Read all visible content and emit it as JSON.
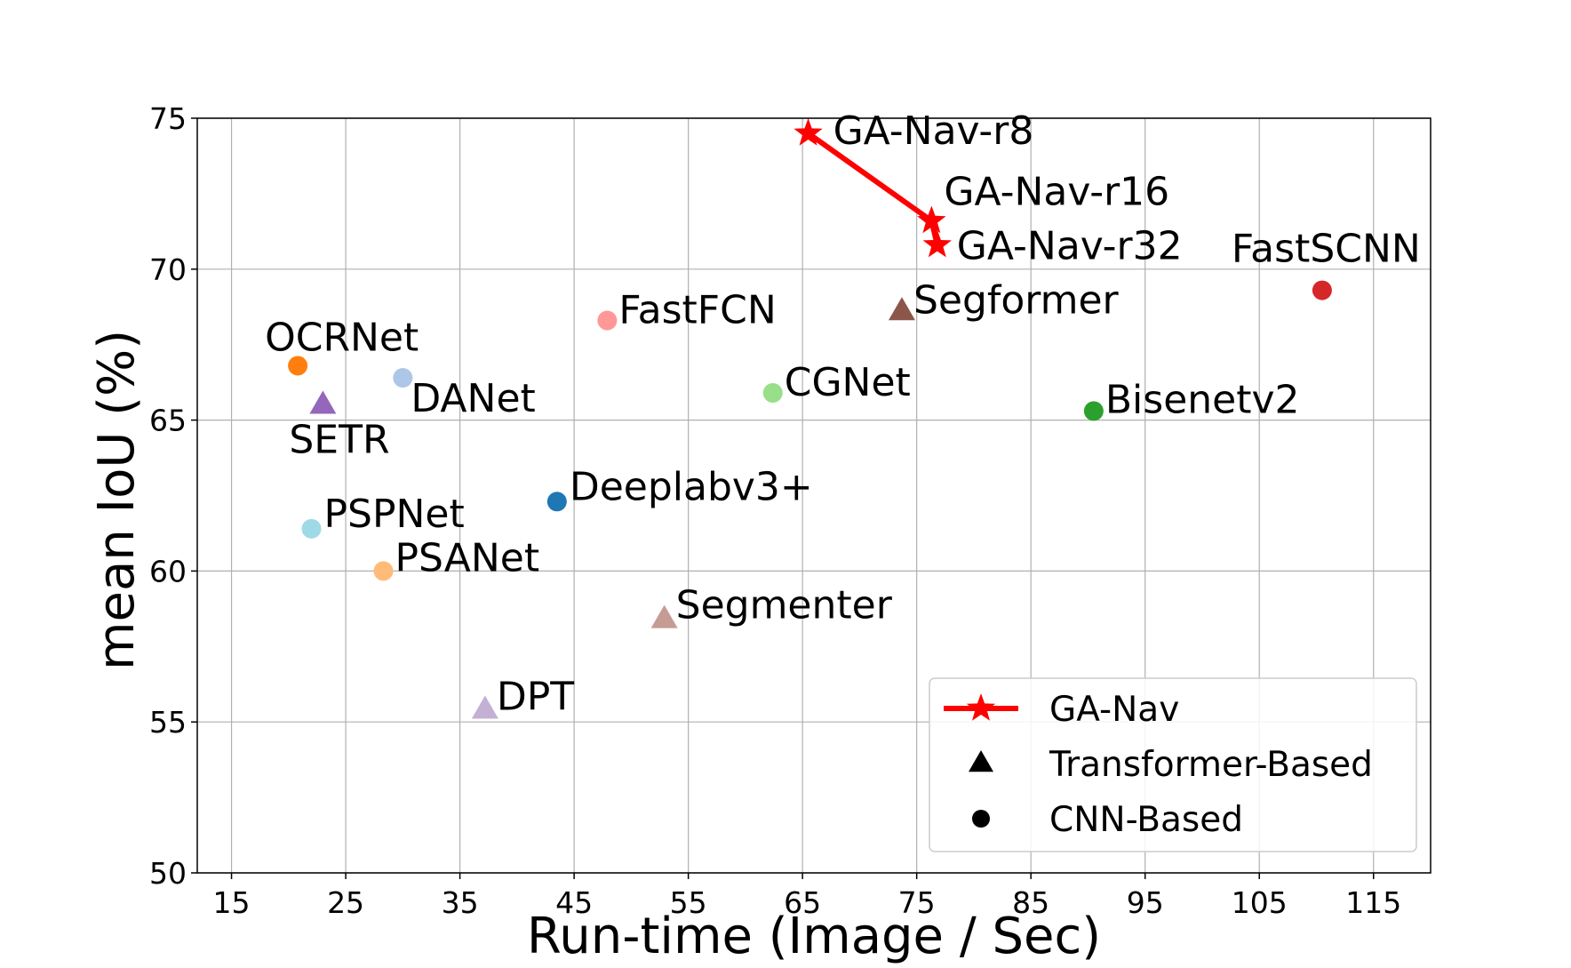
{
  "chart_data": {
    "type": "scatter",
    "xlabel": "Run-time (Image / Sec)",
    "ylabel": "mean IoU (%)",
    "xlim": [
      12,
      120
    ],
    "ylim": [
      50,
      75
    ],
    "xticks": [
      15,
      25,
      35,
      45,
      55,
      65,
      75,
      85,
      95,
      105,
      115
    ],
    "yticks": [
      50,
      55,
      60,
      65,
      70,
      75
    ],
    "grid": true,
    "legend_position": "bottom-right",
    "legend": [
      {
        "label": "GA-Nav",
        "marker": "star-line",
        "color": "#ff0000"
      },
      {
        "label": "Transformer-Based",
        "marker": "triangle",
        "color": "#000000"
      },
      {
        "label": "CNN-Based",
        "marker": "circle",
        "color": "#000000"
      }
    ],
    "line_series": {
      "name": "GA-Nav",
      "color": "#ff0000",
      "points": [
        {
          "label": "GA-Nav-r8",
          "x": 65.5,
          "y": 74.5
        },
        {
          "label": "GA-Nav-r16",
          "x": 76.3,
          "y": 71.6
        },
        {
          "label": "GA-Nav-r32",
          "x": 76.8,
          "y": 70.8
        }
      ]
    },
    "points": [
      {
        "label": "OCRNet",
        "x": 20.8,
        "y": 66.8,
        "marker": "circle",
        "color": "#ff7f0e"
      },
      {
        "label": "SETR",
        "x": 23.0,
        "y": 65.5,
        "marker": "triangle",
        "color": "#9467bd"
      },
      {
        "label": "DANet",
        "x": 30.0,
        "y": 66.4,
        "marker": "circle",
        "color": "#aec7e8"
      },
      {
        "label": "PSPNet",
        "x": 22.0,
        "y": 61.4,
        "marker": "circle",
        "color": "#9edae5"
      },
      {
        "label": "PSANet",
        "x": 28.3,
        "y": 60.0,
        "marker": "circle",
        "color": "#ffbb78"
      },
      {
        "label": "Deeplabv3+",
        "x": 43.5,
        "y": 62.3,
        "marker": "circle",
        "color": "#1f77b4"
      },
      {
        "label": "FastFCN",
        "x": 47.9,
        "y": 68.3,
        "marker": "circle",
        "color": "#ff9896"
      },
      {
        "label": "Segmenter",
        "x": 52.9,
        "y": 58.4,
        "marker": "triangle",
        "color": "#c49c94"
      },
      {
        "label": "DPT",
        "x": 37.2,
        "y": 55.4,
        "marker": "triangle",
        "color": "#c5b0d5"
      },
      {
        "label": "CGNet",
        "x": 62.4,
        "y": 65.9,
        "marker": "circle",
        "color": "#98df8a"
      },
      {
        "label": "Segformer",
        "x": 73.7,
        "y": 68.6,
        "marker": "triangle",
        "color": "#8c564b"
      },
      {
        "label": "Bisenetv2",
        "x": 90.5,
        "y": 65.3,
        "marker": "circle",
        "color": "#2ca02c"
      },
      {
        "label": "FastSCNN",
        "x": 110.5,
        "y": 69.3,
        "marker": "circle",
        "color": "#d62728"
      }
    ]
  }
}
